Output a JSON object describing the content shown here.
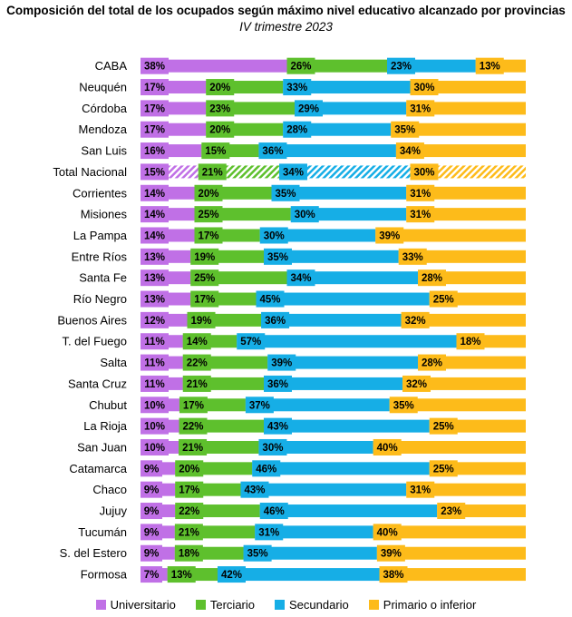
{
  "chart_data": {
    "type": "bar",
    "stacked": true,
    "orientation": "horizontal",
    "normalized_percent": true,
    "title": "Composición del total de los ocupados según máximo nivel educativo alcanzado por provincias",
    "subtitle": "IV trimestre 2023",
    "categories": [
      "CABA",
      "Neuquén",
      "Córdoba",
      "Mendoza",
      "San Luis",
      "Total Nacional",
      "Corrientes",
      "Misiones",
      "La Pampa",
      "Entre Ríos",
      "Santa Fe",
      "Río Negro",
      "Buenos Aires",
      "T. del Fuego",
      "Salta",
      "Santa Cruz",
      "Chubut",
      "La Rioja",
      "San Juan",
      "Catamarca",
      "Chaco",
      "Jujuy",
      "Tucumán",
      "S. del Estero",
      "Formosa"
    ],
    "highlighted_category": "Total Nacional",
    "series": [
      {
        "name": "Universitario",
        "color": "#c070e6",
        "values": [
          38,
          17,
          17,
          17,
          16,
          15,
          14,
          14,
          14,
          13,
          13,
          13,
          12,
          11,
          11,
          11,
          10,
          10,
          10,
          9,
          9,
          9,
          9,
          9,
          7
        ]
      },
      {
        "name": "Terciario",
        "color": "#5ec02d",
        "values": [
          26,
          20,
          23,
          20,
          15,
          21,
          20,
          25,
          17,
          19,
          25,
          17,
          19,
          14,
          22,
          21,
          17,
          22,
          21,
          20,
          17,
          22,
          21,
          18,
          13
        ]
      },
      {
        "name": "Secundario",
        "color": "#16aee6",
        "values": [
          23,
          33,
          29,
          28,
          36,
          34,
          35,
          30,
          30,
          35,
          34,
          45,
          36,
          57,
          39,
          36,
          37,
          43,
          30,
          46,
          43,
          46,
          31,
          35,
          42
        ]
      },
      {
        "name": "Primario o inferior",
        "color": "#fdbb1a",
        "values": [
          13,
          30,
          31,
          35,
          34,
          30,
          31,
          31,
          39,
          33,
          28,
          25,
          32,
          18,
          28,
          32,
          35,
          25,
          40,
          25,
          31,
          23,
          40,
          39,
          38
        ]
      }
    ],
    "legend_position": "bottom",
    "label_suffix": "%"
  }
}
